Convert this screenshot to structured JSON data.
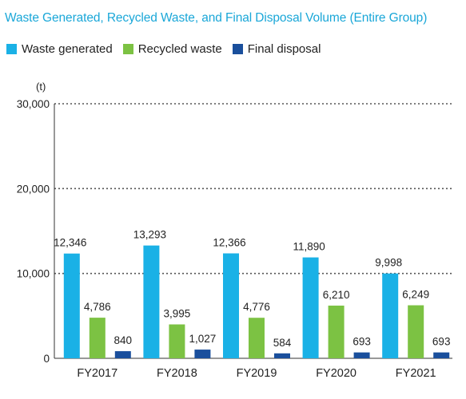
{
  "chart_data": {
    "type": "bar",
    "title": "Waste Generated, Recycled Waste, and Final Disposal Volume (Entire Group)",
    "ylabel": "(t)",
    "categories": [
      "FY2017",
      "FY2018",
      "FY2019",
      "FY2020",
      "FY2021"
    ],
    "series": [
      {
        "name": "Waste generated",
        "color": "#1ab1e6",
        "values": [
          12346,
          13293,
          12366,
          11890,
          9998
        ]
      },
      {
        "name": "Recycled waste",
        "color": "#7cc243",
        "values": [
          4786,
          3995,
          4776,
          6210,
          6249
        ]
      },
      {
        "name": "Final disposal",
        "color": "#1a4f9c",
        "values": [
          840,
          1027,
          584,
          693,
          693
        ]
      }
    ],
    "ylim": [
      0,
      30000
    ],
    "yticks": [
      "0",
      "10,000",
      "20,000",
      "30,000"
    ],
    "data_labels": [
      [
        "12,346",
        "4,786",
        "840"
      ],
      [
        "13,293",
        "3,995",
        "1,027"
      ],
      [
        "12,366",
        "4,776",
        "584"
      ],
      [
        "11,890",
        "6,210",
        "693"
      ],
      [
        "9,998",
        "6,249",
        "693"
      ]
    ],
    "grid": true,
    "legend_position": "top-left"
  }
}
